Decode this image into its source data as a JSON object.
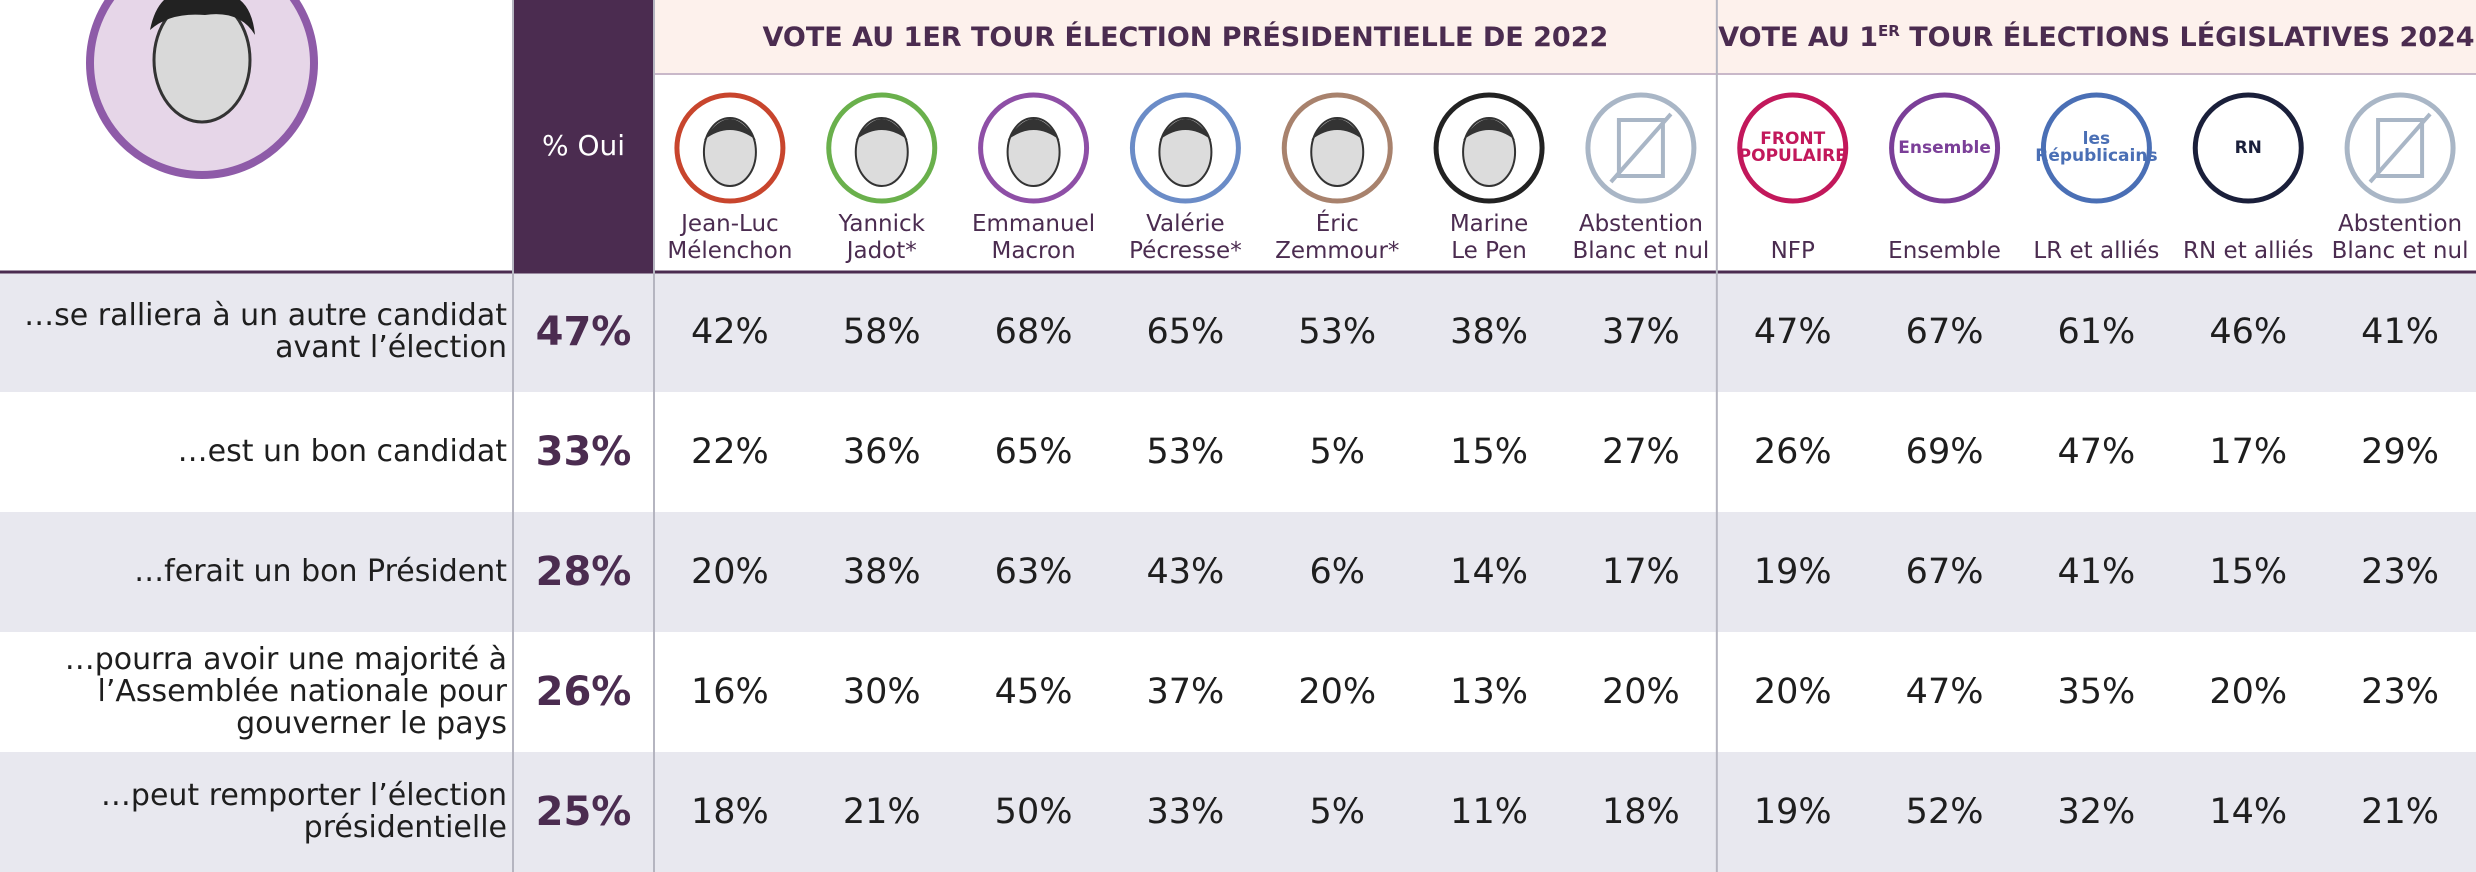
{
  "header": {
    "oui": "% Oui",
    "groups": [
      {
        "title": "VOTE AU 1ER TOUR ÉLECTION PRÉSIDENTIELLE DE 2022",
        "columns": [
          {
            "name": [
              "Jean-Luc",
              "Mélenchon"
            ],
            "color": "#c8452d"
          },
          {
            "name": [
              "Yannick",
              "Jadot*"
            ],
            "color": "#6ab04c"
          },
          {
            "name": [
              "Emmanuel",
              "Macron"
            ],
            "color": "#8e4fa6"
          },
          {
            "name": [
              "Valérie",
              "Pécresse*"
            ],
            "color": "#6b8cc7"
          },
          {
            "name": [
              "Éric",
              "Zemmour*"
            ],
            "color": "#a8826d"
          },
          {
            "name": [
              "Marine",
              "Le Pen"
            ],
            "color": "#222222"
          },
          {
            "name": [
              "Abstention",
              "Blanc et nul"
            ],
            "color": "#a9b6c6"
          }
        ]
      },
      {
        "title": "VOTE AU 1",
        "sup": "ER",
        "title_end": "TOUR ÉLECTIONS LÉGISLATIVES 2024",
        "columns": [
          {
            "name": [
              "NFP"
            ],
            "logo": "FRONT POPULAIRE",
            "color": "#c2185b"
          },
          {
            "name": [
              "Ensemble"
            ],
            "logo": "Ensemble",
            "color": "#7b3f98"
          },
          {
            "name": [
              "LR et alliés"
            ],
            "logo": "les Républicains",
            "color": "#4a6fb5"
          },
          {
            "name": [
              "RN et alliés"
            ],
            "logo": "RN",
            "color": "#1a1f3a"
          },
          {
            "name": [
              "Abstention",
              "Blanc et nul"
            ],
            "color": "#a9b6c6"
          }
        ]
      }
    ]
  },
  "rows": [
    {
      "label": "…se ralliera à un autre candidat avant l’élection",
      "total": "47%",
      "values": [
        "42%",
        "58%",
        "68%",
        "65%",
        "53%",
        "38%",
        "37%",
        "47%",
        "67%",
        "61%",
        "46%",
        "41%"
      ]
    },
    {
      "label": "…est un bon candidat",
      "total": "33%",
      "values": [
        "22%",
        "36%",
        "65%",
        "53%",
        "5%",
        "15%",
        "27%",
        "26%",
        "69%",
        "47%",
        "17%",
        "29%"
      ]
    },
    {
      "label": "…ferait un bon Président",
      "total": "28%",
      "values": [
        "20%",
        "38%",
        "63%",
        "43%",
        "6%",
        "14%",
        "17%",
        "19%",
        "67%",
        "41%",
        "15%",
        "23%"
      ]
    },
    {
      "label": "…pourra avoir une majorité à l’Assemblée nationale pour gouverner le pays",
      "total": "26%",
      "values": [
        "16%",
        "30%",
        "45%",
        "37%",
        "20%",
        "13%",
        "20%",
        "20%",
        "47%",
        "35%",
        "20%",
        "23%"
      ]
    },
    {
      "label": "…peut remporter l’élection présidentielle",
      "total": "25%",
      "values": [
        "18%",
        "21%",
        "50%",
        "33%",
        "5%",
        "11%",
        "18%",
        "19%",
        "52%",
        "32%",
        "14%",
        "21%"
      ]
    }
  ]
}
